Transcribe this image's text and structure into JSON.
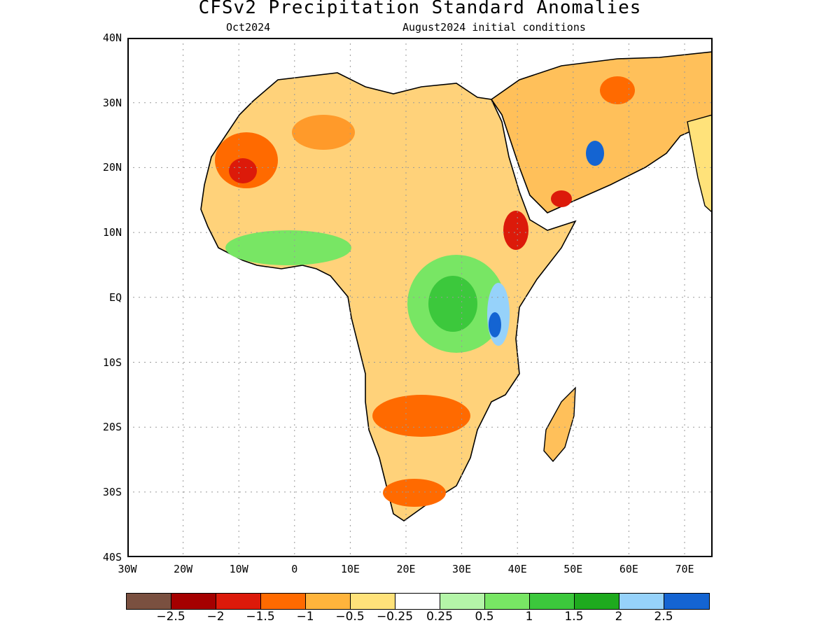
{
  "title": "CFSv2 Precipitation Standard Anomalies",
  "subtitle_left": "Oct2024",
  "subtitle_right": "August2024 initial conditions",
  "lat_labels": [
    "40N",
    "30N",
    "20N",
    "10N",
    "EQ",
    "10S",
    "20S",
    "30S",
    "40S"
  ],
  "lon_labels": [
    "30W",
    "20W",
    "10W",
    "0",
    "10E",
    "20E",
    "30E",
    "40E",
    "50E",
    "60E",
    "70E"
  ],
  "colorbar": {
    "colors": [
      "#7a5040",
      "#a50000",
      "#dc1a0a",
      "#ff6a00",
      "#ffb43c",
      "#ffe27a",
      "#ffffff",
      "#b4f5a8",
      "#78e664",
      "#3cc83c",
      "#1eaa1e",
      "#96d2fa",
      "#1464d2"
    ],
    "labels": [
      "−2.5",
      "−2",
      "−1.5",
      "−1",
      "−0.5",
      "−0.25",
      "0.25",
      "0.5",
      "1",
      "1.5",
      "2",
      "2.5"
    ]
  }
}
